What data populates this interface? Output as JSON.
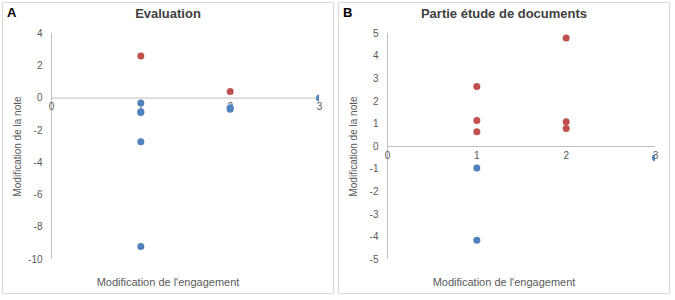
{
  "chart_data": [
    {
      "type": "scatter",
      "panel": "A",
      "title": "Evaluation",
      "x_label": "Modification de l'engagement",
      "y_label": "Modification de la note",
      "xlim": [
        0,
        3
      ],
      "xticks": [
        0,
        1,
        2,
        3
      ],
      "ylim": [
        -10,
        4
      ],
      "yticks": [
        -10,
        -8,
        -6,
        -4,
        -2,
        0,
        2,
        4
      ],
      "grid": false,
      "series": [
        {
          "color": "#c0504d",
          "x": [
            1,
            2
          ],
          "values": [
            2.6,
            0.4
          ]
        },
        {
          "color": "#4f81bd",
          "x": [
            1,
            1,
            1,
            1,
            1,
            2,
            2,
            3
          ],
          "values": [
            -0.3,
            -0.85,
            -0.9,
            -2.7,
            -9.2,
            -0.6,
            -0.7,
            0.0
          ]
        }
      ]
    },
    {
      "type": "scatter",
      "panel": "B",
      "title": "Partie étude de documents",
      "x_label": "Modification de l'engagement",
      "y_label": "Modification de la note",
      "xlim": [
        0,
        3
      ],
      "xticks": [
        0,
        1,
        2,
        3
      ],
      "ylim": [
        -5,
        5
      ],
      "yticks": [
        -5,
        -4,
        -3,
        -2,
        -1,
        0,
        1,
        2,
        3,
        4,
        5
      ],
      "grid": false,
      "series": [
        {
          "color": "#c0504d",
          "x": [
            1,
            1,
            1,
            2,
            2,
            2
          ],
          "values": [
            2.65,
            1.15,
            0.65,
            4.8,
            1.1,
            0.8
          ]
        },
        {
          "color": "#4f81bd",
          "x": [
            1,
            1,
            3
          ],
          "values": [
            -0.95,
            -4.15,
            -0.5
          ]
        }
      ]
    }
  ]
}
